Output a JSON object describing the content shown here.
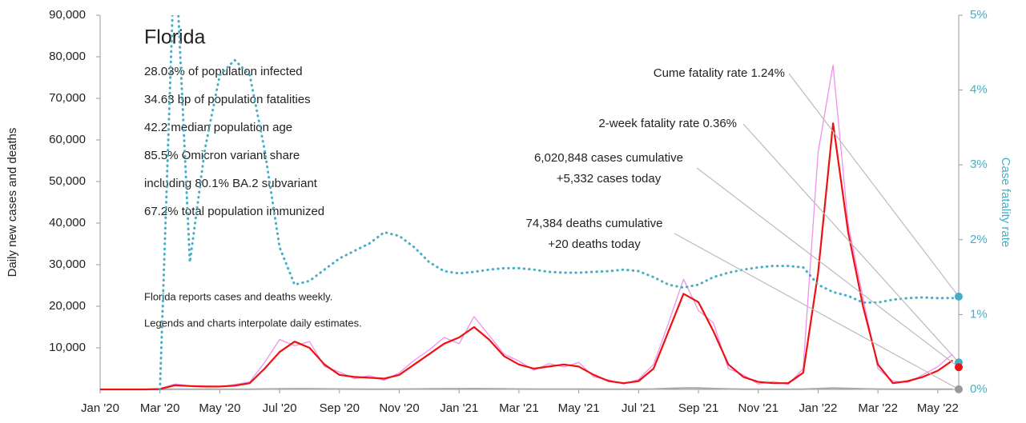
{
  "chart_data": {
    "type": "line",
    "title": "Florida",
    "info_lines": [
      "28.03% of population infected",
      "34.63 bp of population fatalities",
      "42.2 median population age",
      "85.5% Omicron variant share",
      "including 80.1% BA.2 subvariant",
      "67.2% total population immunized"
    ],
    "notes": [
      "Florida reports cases and deaths weekly.",
      "Legends and charts interpolate daily estimates."
    ],
    "ylabel": "Daily new cases and deaths",
    "y2label": "Case fatality rate",
    "xlim": [
      0,
      28.7
    ],
    "xticks": [
      {
        "value": 0,
        "label": "Jan '20"
      },
      {
        "value": 2,
        "label": "Mar '20"
      },
      {
        "value": 4,
        "label": "May '20"
      },
      {
        "value": 6,
        "label": "Jul '20"
      },
      {
        "value": 8,
        "label": "Sep '20"
      },
      {
        "value": 10,
        "label": "Nov '20"
      },
      {
        "value": 12,
        "label": "Jan '21"
      },
      {
        "value": 14,
        "label": "Mar '21"
      },
      {
        "value": 16,
        "label": "May '21"
      },
      {
        "value": 18,
        "label": "Jul '21"
      },
      {
        "value": 20,
        "label": "Sep '21"
      },
      {
        "value": 22,
        "label": "Nov '21"
      },
      {
        "value": 24,
        "label": "Jan '22"
      },
      {
        "value": 26,
        "label": "Mar '22"
      },
      {
        "value": 28,
        "label": "May '22"
      }
    ],
    "ylim": [
      0,
      90000
    ],
    "yticks": [
      {
        "value": 10000,
        "label": "10,000"
      },
      {
        "value": 20000,
        "label": "20,000"
      },
      {
        "value": 30000,
        "label": "30,000"
      },
      {
        "value": 40000,
        "label": "40,000"
      },
      {
        "value": 50000,
        "label": "50,000"
      },
      {
        "value": 60000,
        "label": "60,000"
      },
      {
        "value": 70000,
        "label": "70,000"
      },
      {
        "value": 80000,
        "label": "80,000"
      },
      {
        "value": 90000,
        "label": "90,000"
      }
    ],
    "y2lim": [
      0,
      5
    ],
    "y2ticks": [
      {
        "value": 0,
        "label": "0%"
      },
      {
        "value": 1,
        "label": "1%"
      },
      {
        "value": 2,
        "label": "2%"
      },
      {
        "value": 3,
        "label": "3%"
      },
      {
        "value": 4,
        "label": "4%"
      },
      {
        "value": 5,
        "label": "5%"
      }
    ],
    "x": [
      0,
      0.5,
      1,
      1.5,
      2,
      2.5,
      3,
      3.5,
      4,
      4.5,
      5,
      5.5,
      6,
      6.5,
      7,
      7.5,
      8,
      8.5,
      9,
      9.5,
      10,
      10.5,
      11,
      11.5,
      12,
      12.5,
      13,
      13.5,
      14,
      14.5,
      15,
      15.5,
      16,
      16.5,
      17,
      17.5,
      18,
      18.5,
      19,
      19.5,
      20,
      20.5,
      21,
      21.5,
      22,
      22.5,
      23,
      23.5,
      24,
      24.5,
      25,
      25.5,
      26,
      26.5,
      27,
      27.5,
      28,
      28.5
    ],
    "series": [
      {
        "color": "#f090ee",
        "width": 1.3,
        "values": [
          0,
          0,
          0,
          0,
          200,
          1300,
          900,
          800,
          600,
          1200,
          1800,
          6500,
          12000,
          10500,
          11500,
          5500,
          4200,
          2600,
          3300,
          2200,
          4000,
          7000,
          9500,
          12500,
          11000,
          17500,
          13000,
          8500,
          6800,
          4600,
          6200,
          5400,
          6500,
          3000,
          2300,
          1300,
          2400,
          6000,
          16000,
          26500,
          19000,
          16000,
          5000,
          3500,
          1300,
          1900,
          1200,
          5000,
          57000,
          78000,
          40000,
          22000,
          5000,
          2000,
          1700,
          3500,
          5500,
          8500
        ]
      },
      {
        "color": "#aaaaaa",
        "width": 2,
        "values": [
          0,
          0,
          0,
          0,
          5,
          50,
          60,
          50,
          40,
          40,
          50,
          100,
          150,
          180,
          170,
          120,
          90,
          70,
          60,
          60,
          70,
          100,
          130,
          170,
          180,
          190,
          170,
          130,
          90,
          80,
          70,
          70,
          70,
          60,
          40,
          30,
          40,
          100,
          250,
          350,
          320,
          220,
          110,
          60,
          40,
          30,
          30,
          50,
          200,
          350,
          250,
          150,
          80,
          40,
          30,
          30,
          40,
          50
        ]
      },
      {
        "color": "#ee1111",
        "width": 2.2,
        "values": [
          0,
          0,
          0,
          0,
          100,
          1000,
          800,
          700,
          700,
          900,
          1500,
          5000,
          9000,
          11500,
          10000,
          6000,
          3500,
          3000,
          2800,
          2600,
          3500,
          6000,
          8500,
          11000,
          12500,
          15000,
          12000,
          8000,
          6000,
          5000,
          5500,
          6000,
          5500,
          3500,
          2000,
          1500,
          2000,
          5000,
          14000,
          23000,
          21000,
          14000,
          6000,
          3000,
          1800,
          1500,
          1500,
          4000,
          28000,
          64000,
          38000,
          20000,
          6000,
          1500,
          2000,
          3000,
          4500,
          7000
        ]
      },
      {
        "color": "#46aec4",
        "width": 3,
        "dotted": true,
        "axis": "y2",
        "values": [
          null,
          null,
          null,
          null,
          0,
          6,
          1.7,
          3.2,
          4.2,
          4.4,
          4.2,
          3.2,
          1.9,
          1.4,
          1.45,
          1.6,
          1.75,
          1.85,
          1.95,
          2.1,
          2.05,
          1.9,
          1.7,
          1.58,
          1.55,
          1.57,
          1.6,
          1.62,
          1.62,
          1.6,
          1.57,
          1.56,
          1.56,
          1.57,
          1.58,
          1.6,
          1.58,
          1.5,
          1.4,
          1.36,
          1.4,
          1.5,
          1.56,
          1.6,
          1.63,
          1.65,
          1.65,
          1.63,
          1.4,
          1.3,
          1.25,
          1.16,
          1.16,
          1.2,
          1.22,
          1.23,
          1.22,
          1.22
        ]
      }
    ],
    "annotations": [
      {
        "lines": [
          "Cume fatality rate 1.24%"
        ],
        "value": 1.24,
        "axis": "y2",
        "color": "#46aec4"
      },
      {
        "lines": [
          "2-week fatality rate 0.36%"
        ],
        "value": 0.36,
        "axis": "y2",
        "color": "#46aec4"
      },
      {
        "lines": [
          "6,020,848 cases cumulative",
          "+5,332 cases today"
        ],
        "value": 5332,
        "axis": "y",
        "color": "#ee1111"
      },
      {
        "lines": [
          "74,384 deaths cumulative",
          "+20 deaths today"
        ],
        "value": 20,
        "axis": "y",
        "color": "#999999"
      }
    ]
  }
}
